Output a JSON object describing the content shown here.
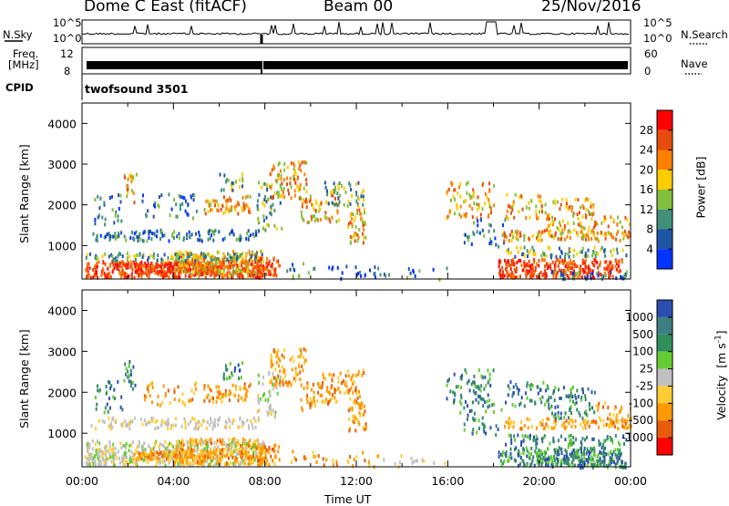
{
  "header": {
    "station": "Dome C East (fitACF)",
    "beam": "Beam 00",
    "date": "25/Nov/2016"
  },
  "status_panels": {
    "nsky": {
      "label": "N.Sky",
      "ticks": [
        "10^5",
        "10^0"
      ],
      "right_label": "N.Search",
      "right_ticks": [
        "10^5",
        "10^0"
      ]
    },
    "freq": {
      "label_top": "Freq.",
      "label_bottom": "[MHz]",
      "ticks": [
        "12",
        "8"
      ],
      "right_label": "Nave",
      "right_ticks": [
        "60",
        "0"
      ]
    },
    "cpid": {
      "label": "CPID",
      "value": "twofsound 3501"
    }
  },
  "chart_data": [
    {
      "type": "heatmap",
      "name": "power",
      "ylabel": "Slant Range [km]",
      "xlabel": "",
      "ylim": [
        180,
        4500
      ],
      "xlim": [
        0,
        24
      ],
      "yticks": [
        "4000",
        "3000",
        "2000",
        "1000"
      ],
      "colorbar": {
        "label": "Power [dB]",
        "ticks": [
          "28",
          "24",
          "20",
          "16",
          "12",
          "8",
          "4"
        ],
        "colors": [
          "#ff0000",
          "#e84c0c",
          "#ff7f00",
          "#ffcc00",
          "#82bf3c",
          "#40907a",
          "#1f55a5",
          "#0033ff"
        ]
      }
    },
    {
      "type": "heatmap",
      "name": "velocity",
      "ylabel": "Slant Range [km]",
      "xlabel": "Time UT",
      "ylim": [
        180,
        4500
      ],
      "xlim": [
        0,
        24
      ],
      "yticks": [
        "4000",
        "3000",
        "2000",
        "1000"
      ],
      "xticks": [
        "00:00",
        "04:00",
        "08:00",
        "12:00",
        "16:00",
        "20:00",
        "00:00"
      ],
      "colorbar": {
        "label": "Velocity",
        "unit": "m s",
        "unit_sup": "-1",
        "ticks": [
          "1000",
          "500",
          "100",
          "25",
          "-25",
          "-100",
          "-500",
          "-1000"
        ],
        "colors": [
          "#2a4fb0",
          "#3c7f83",
          "#2f8f5a",
          "#66cc33",
          "#c0c0c0",
          "#ffcc33",
          "#ff9900",
          "#e85c0c",
          "#ff0000"
        ]
      }
    }
  ]
}
